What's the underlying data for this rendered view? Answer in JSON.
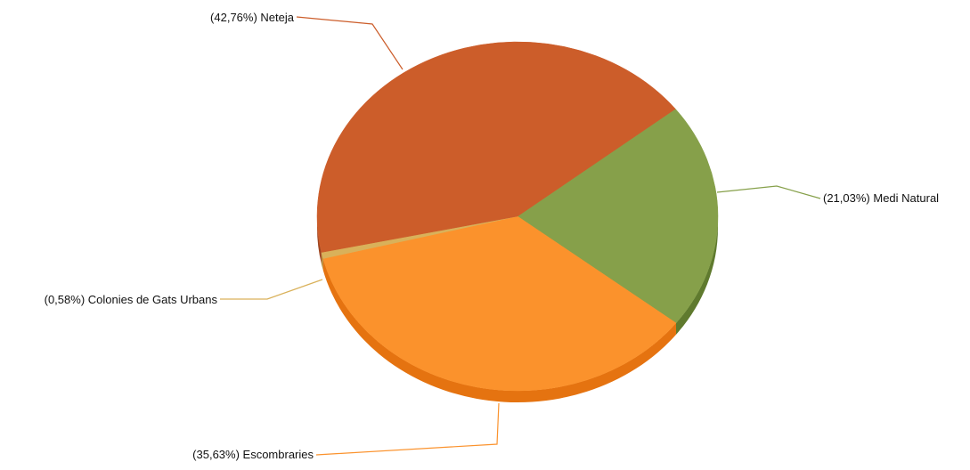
{
  "chart_data": {
    "type": "pie",
    "title": "",
    "slices": [
      {
        "label": "(42,76%) Neteja",
        "name": "Neteja",
        "value": 42.76,
        "color": "#CC5D2A",
        "side": "#9F4520"
      },
      {
        "label": "(21,03%) Medi Natural",
        "name": "Medi Natural",
        "value": 21.03,
        "color": "#86A04A",
        "side": "#5F7A2E"
      },
      {
        "label": "(35,63%) Escombraries",
        "name": "Escombraries",
        "value": 35.63,
        "color": "#FB922C",
        "side": "#E57310"
      },
      {
        "label": "(0,58%) Colonies de Gats Urbans",
        "name": "Colonies de Gats Urbans",
        "value": 0.58,
        "color": "#D9B15A",
        "side": "#B38A36"
      }
    ],
    "style": "3d"
  }
}
